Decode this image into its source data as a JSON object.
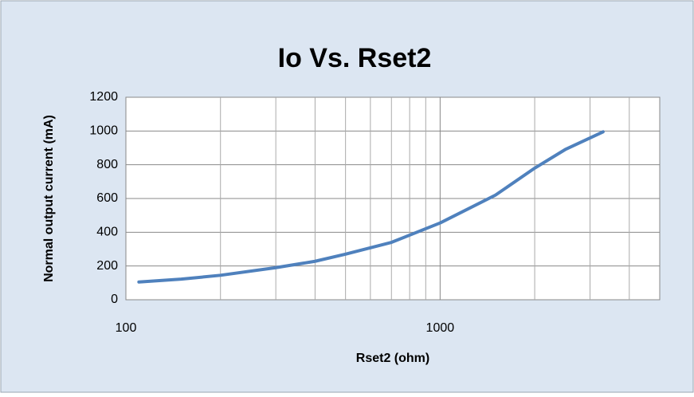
{
  "chart_data": {
    "type": "line",
    "title": "Io Vs. Rset2",
    "x_label": "Rset2 (ohm)",
    "y_label": "Normal output current (mA)",
    "x_scale": "log",
    "x": [
      110,
      150,
      200,
      300,
      400,
      500,
      700,
      1000,
      1500,
      2000,
      2500,
      3300
    ],
    "series": [
      {
        "name": "Io",
        "color": "#4f81bd",
        "values": [
          105,
          122,
          145,
          190,
          228,
          270,
          340,
          455,
          620,
          780,
          890,
          995
        ]
      }
    ],
    "xlim": [
      100,
      5000
    ],
    "xticks": [
      100,
      1000
    ],
    "x_minor_grid": [
      200,
      300,
      400,
      500,
      600,
      700,
      800,
      900,
      2000,
      3000,
      4000
    ],
    "ylim": [
      0,
      1200
    ],
    "yticks": [
      0,
      200,
      400,
      600,
      800,
      1000,
      1200
    ],
    "grid": true
  }
}
